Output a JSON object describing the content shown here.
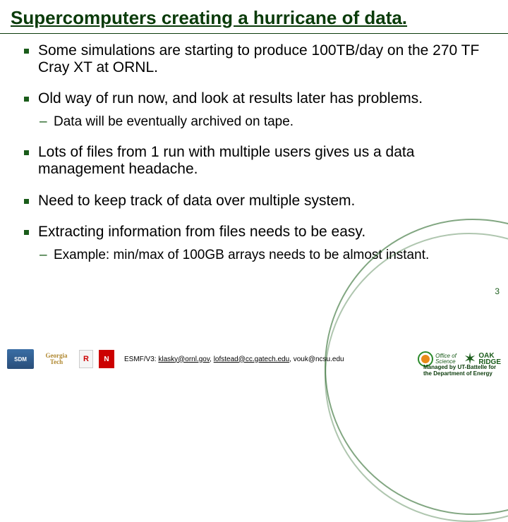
{
  "title": "Supercomputers creating a hurricane of data.",
  "bullets": [
    {
      "text": "Some simulations are starting to produce 100TB/day on the 270 TF Cray XT at ORNL."
    },
    {
      "text": "Old way of run now, and look at results later has problems.",
      "sub": [
        "Data will be eventually archived on tape."
      ]
    },
    {
      "text": "Lots of files from 1 run with multiple users gives us a data management headache."
    },
    {
      "text": "Need to keep track of data over multiple system."
    },
    {
      "text": "Extracting information from files needs to be easy.",
      "sub": [
        "Example: min/max of 100GB arrays needs to be almost instant."
      ]
    }
  ],
  "page_number": "3",
  "footer": {
    "contact_prefix": "ESMF/V3: ",
    "email1": "klasky@ornl.gov",
    "email2": "lofstead@cc.gatech.edu",
    "email3": "vouk@ncsu.edu",
    "logos": {
      "sdm": "SDM",
      "gt": "Georgia Tech",
      "ncsu": "N",
      "rut": "R",
      "sci_line1": "Office of",
      "sci_line2": "Science",
      "ornl_line1": "OAK",
      "ornl_line2": "RIDGE"
    },
    "managed": "Managed by UT-Battelle for the Department of Energy"
  }
}
